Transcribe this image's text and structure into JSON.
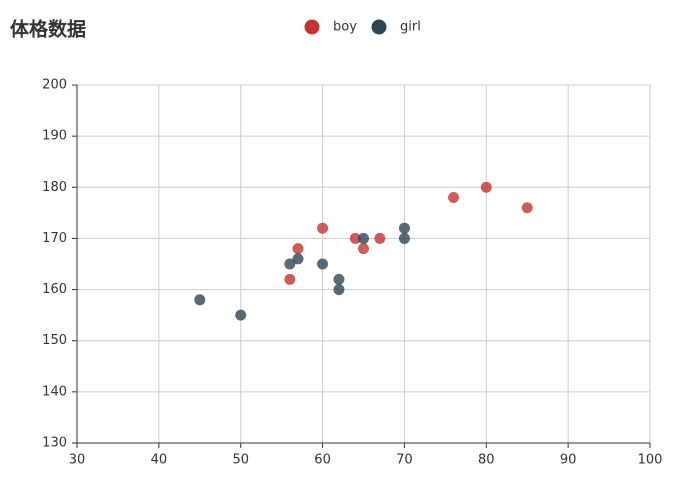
{
  "chart_data": {
    "type": "scatter",
    "title": "体格数据",
    "series": [
      {
        "name": "boy",
        "color": "#c23531",
        "x": [
          56,
          57,
          60,
          64,
          65,
          67,
          76,
          80,
          85
        ],
        "values": [
          162,
          168,
          172,
          170,
          168,
          170,
          178,
          180,
          176
        ]
      },
      {
        "name": "girl",
        "color": "#2f4554",
        "x": [
          45,
          50,
          56,
          57,
          60,
          62,
          62,
          65,
          70,
          70
        ],
        "values": [
          158,
          155,
          165,
          166,
          165,
          162,
          160,
          170,
          172,
          170
        ]
      }
    ],
    "xlim": [
      30,
      100
    ],
    "xticks": [
      30,
      40,
      50,
      60,
      70,
      80,
      90,
      100
    ],
    "ylim": [
      130,
      200
    ],
    "yticks": [
      130,
      140,
      150,
      160,
      170,
      180,
      190,
      200
    ],
    "grid": true
  }
}
